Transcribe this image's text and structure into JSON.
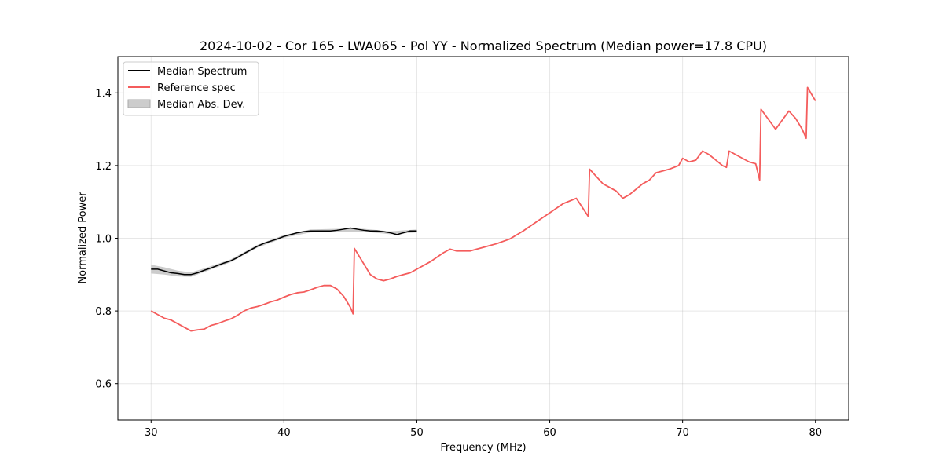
{
  "chart_data": {
    "type": "line",
    "title": "2024-10-02 - Cor 165 - LWA065 - Pol YY - Normalized Spectrum (Median power=17.8 CPU)",
    "xlabel": "Frequency (MHz)",
    "ylabel": "Normalized Power",
    "xlim": [
      27.5,
      82.5
    ],
    "ylim": [
      0.5,
      1.5
    ],
    "xticks": [
      30,
      40,
      50,
      60,
      70,
      80
    ],
    "yticks": [
      0.6,
      0.8,
      1.0,
      1.2,
      1.4
    ],
    "grid": true,
    "legend_position": "top-left",
    "legend": [
      "Median Spectrum",
      "Reference spec",
      "Median Abs. Dev."
    ],
    "colors": {
      "median": "#000000",
      "reference": "#f45c5c",
      "mad": "#bfbfbf"
    },
    "series": [
      {
        "name": "Median Spectrum",
        "x": [
          30.0,
          30.5,
          31.0,
          31.5,
          32.0,
          32.5,
          33.0,
          33.5,
          34.0,
          34.5,
          35.0,
          35.5,
          36.0,
          36.5,
          37.0,
          37.5,
          38.0,
          38.5,
          39.0,
          39.5,
          40.0,
          40.5,
          41.0,
          41.5,
          42.0,
          42.5,
          43.0,
          43.5,
          44.0,
          44.5,
          45.0,
          45.5,
          46.0,
          46.5,
          47.0,
          47.5,
          48.0,
          48.5,
          49.0,
          49.5,
          50.0
        ],
        "y": [
          0.915,
          0.915,
          0.91,
          0.905,
          0.903,
          0.9,
          0.9,
          0.905,
          0.912,
          0.918,
          0.925,
          0.932,
          0.938,
          0.947,
          0.958,
          0.968,
          0.978,
          0.986,
          0.992,
          0.998,
          1.005,
          1.01,
          1.015,
          1.018,
          1.02,
          1.02,
          1.02,
          1.02,
          1.022,
          1.025,
          1.028,
          1.025,
          1.022,
          1.02,
          1.02,
          1.018,
          1.015,
          1.01,
          1.015,
          1.02,
          1.02
        ]
      },
      {
        "name": "Reference spec",
        "x": [
          30.0,
          30.5,
          31.0,
          31.5,
          32.0,
          32.5,
          33.0,
          33.5,
          34.0,
          34.5,
          35.0,
          35.5,
          36.0,
          36.5,
          37.0,
          37.5,
          38.0,
          38.5,
          39.0,
          39.5,
          40.0,
          40.5,
          41.0,
          41.5,
          42.0,
          42.5,
          43.0,
          43.5,
          44.0,
          44.5,
          45.0,
          45.2,
          45.3,
          46.0,
          46.5,
          47.0,
          47.5,
          48.0,
          48.5,
          49.0,
          49.5,
          50.0,
          51.0,
          52.0,
          52.5,
          53.0,
          54.0,
          54.5,
          55.0,
          55.5,
          56.0,
          57.0,
          58.0,
          59.0,
          60.0,
          61.0,
          62.0,
          62.9,
          63.0,
          64.0,
          65.0,
          65.5,
          66.0,
          67.0,
          67.5,
          68.0,
          69.0,
          69.7,
          70.0,
          70.5,
          71.0,
          71.5,
          72.0,
          72.5,
          73.0,
          73.3,
          73.5,
          74.0,
          75.0,
          75.5,
          75.8,
          75.9,
          77.0,
          78.0,
          78.5,
          79.0,
          79.3,
          79.4,
          80.0
        ],
        "y": [
          0.8,
          0.79,
          0.78,
          0.775,
          0.765,
          0.755,
          0.745,
          0.748,
          0.75,
          0.76,
          0.765,
          0.772,
          0.778,
          0.788,
          0.8,
          0.808,
          0.812,
          0.818,
          0.825,
          0.83,
          0.838,
          0.845,
          0.85,
          0.852,
          0.858,
          0.865,
          0.87,
          0.87,
          0.86,
          0.84,
          0.81,
          0.792,
          0.972,
          0.93,
          0.9,
          0.888,
          0.883,
          0.888,
          0.895,
          0.9,
          0.905,
          0.915,
          0.935,
          0.96,
          0.97,
          0.965,
          0.965,
          0.97,
          0.975,
          0.98,
          0.985,
          0.998,
          1.02,
          1.045,
          1.07,
          1.095,
          1.11,
          1.06,
          1.19,
          1.15,
          1.13,
          1.11,
          1.12,
          1.15,
          1.16,
          1.18,
          1.19,
          1.2,
          1.22,
          1.21,
          1.215,
          1.24,
          1.23,
          1.215,
          1.2,
          1.195,
          1.24,
          1.23,
          1.21,
          1.205,
          1.16,
          1.355,
          1.3,
          1.35,
          1.33,
          1.3,
          1.275,
          1.415,
          1.378
        ]
      },
      {
        "name": "Median Abs. Dev.",
        "x": [
          30.0,
          31.0,
          32.0,
          33.0,
          34.0,
          36.0,
          38.0,
          40.0,
          42.0,
          44.0,
          46.0,
          48.0,
          50.0
        ],
        "y": [
          0.915,
          0.91,
          0.903,
          0.9,
          0.912,
          0.938,
          0.978,
          1.005,
          1.02,
          1.022,
          1.022,
          1.015,
          1.02
        ],
        "spread": [
          0.012,
          0.01,
          0.008,
          0.006,
          0.005,
          0.004,
          0.004,
          0.004,
          0.004,
          0.004,
          0.004,
          0.004,
          0.004
        ]
      }
    ]
  }
}
